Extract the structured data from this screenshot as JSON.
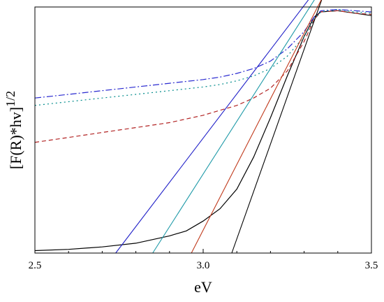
{
  "chart_data": {
    "type": "line",
    "title": "",
    "xlabel": "eV",
    "ylabel": "[F(R)*hv]",
    "ylabel_superscript": "1/2",
    "xlim": [
      2.5,
      3.5
    ],
    "ylim": [
      0,
      1.0
    ],
    "x_ticks": [
      "2.5",
      "3.0",
      "3.5"
    ],
    "y_ticks_labeled": false,
    "grid": false,
    "legend": "none",
    "series": [
      {
        "color": "#000000",
        "dash": "solid",
        "x": [
          2.5,
          2.6,
          2.7,
          2.8,
          2.9,
          2.95,
          3.0,
          3.05,
          3.1,
          3.15,
          3.2,
          3.25,
          3.3,
          3.33,
          3.35,
          3.4,
          3.45,
          3.5
        ],
        "y": [
          0.01,
          0.015,
          0.025,
          0.04,
          0.07,
          0.09,
          0.13,
          0.18,
          0.26,
          0.39,
          0.55,
          0.72,
          0.88,
          0.96,
          0.98,
          0.985,
          0.975,
          0.965
        ]
      },
      {
        "color": "#b22222",
        "dash": "6,4",
        "x": [
          2.5,
          2.6,
          2.7,
          2.8,
          2.9,
          3.0,
          3.05,
          3.1,
          3.15,
          3.2,
          3.25,
          3.3,
          3.33,
          3.35,
          3.4,
          3.45,
          3.5
        ],
        "y": [
          0.45,
          0.47,
          0.49,
          0.51,
          0.53,
          0.56,
          0.58,
          0.6,
          0.63,
          0.67,
          0.74,
          0.86,
          0.95,
          0.98,
          0.985,
          0.975,
          0.97
        ]
      },
      {
        "color": "#008b8b",
        "dash": "2,4",
        "x": [
          2.5,
          2.6,
          2.7,
          2.8,
          2.9,
          3.0,
          3.05,
          3.1,
          3.15,
          3.2,
          3.25,
          3.3,
          3.33,
          3.35,
          3.4,
          3.45,
          3.5
        ],
        "y": [
          0.6,
          0.615,
          0.63,
          0.645,
          0.66,
          0.675,
          0.685,
          0.7,
          0.72,
          0.75,
          0.8,
          0.88,
          0.95,
          0.98,
          0.99,
          0.98,
          0.975
        ]
      },
      {
        "color": "#2a2ad0",
        "dash": "9,3,2,3",
        "x": [
          2.5,
          2.6,
          2.7,
          2.8,
          2.9,
          3.0,
          3.05,
          3.1,
          3.15,
          3.2,
          3.25,
          3.3,
          3.33,
          3.35,
          3.4,
          3.45,
          3.5
        ],
        "y": [
          0.63,
          0.645,
          0.66,
          0.675,
          0.69,
          0.705,
          0.715,
          0.73,
          0.75,
          0.78,
          0.83,
          0.9,
          0.96,
          0.985,
          0.99,
          0.985,
          0.98
        ]
      }
    ],
    "tangent_lines": [
      {
        "color": "#000000",
        "x": [
          3.085,
          3.355
        ],
        "y": [
          0.0,
          1.04
        ]
      },
      {
        "color": "#c0391b",
        "x": [
          2.965,
          3.355
        ],
        "y": [
          0.0,
          1.04
        ]
      },
      {
        "color": "#1f9aa8",
        "x": [
          2.85,
          3.345
        ],
        "y": [
          0.0,
          1.06
        ]
      },
      {
        "color": "#2020c8",
        "x": [
          2.74,
          3.33
        ],
        "y": [
          0.0,
          1.06
        ]
      }
    ]
  }
}
